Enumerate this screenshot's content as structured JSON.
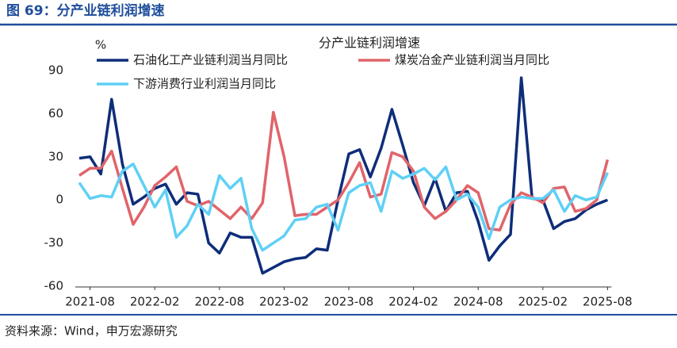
{
  "header": {
    "title": "图 69：分产业链利润增速"
  },
  "chart_data": {
    "type": "line",
    "title": "分产业链利润增速",
    "y_label": "%",
    "categories": [
      null,
      "2021-08",
      null,
      null,
      null,
      null,
      null,
      "2022-02",
      null,
      null,
      null,
      null,
      null,
      "2022-08",
      null,
      null,
      null,
      null,
      null,
      "2023-02",
      null,
      null,
      null,
      null,
      null,
      "2023-08",
      null,
      null,
      null,
      null,
      null,
      "2024-02",
      null,
      null,
      null,
      null,
      null,
      "2024-08",
      null,
      null,
      null,
      null,
      null,
      "2025-02",
      null,
      null,
      null,
      null,
      null,
      "2025-08"
    ],
    "series": [
      {
        "name": "石油化工产业链利润当月同比",
        "color": "#0e2d7a",
        "values": [
          29,
          30,
          18,
          70,
          25,
          -3,
          2,
          8,
          11,
          -3,
          5,
          4,
          -30,
          -37,
          -23,
          -26,
          -26,
          -51,
          -47,
          -43,
          -41,
          -40,
          -34,
          -35,
          0,
          32,
          35,
          16,
          36,
          63,
          38,
          12,
          -4,
          15,
          -8,
          5,
          6,
          -15,
          -42,
          -32,
          -24,
          85,
          1,
          0,
          -20,
          -15,
          -13,
          -7,
          -3,
          0
        ]
      },
      {
        "name": "煤炭冶金产业链利润当月同比",
        "color": "#e0646a",
        "values": [
          17,
          22,
          22,
          34,
          8,
          -17,
          -5,
          10,
          16,
          23,
          -1,
          -4,
          -1,
          -7,
          -13,
          -5,
          -13,
          -2,
          61,
          30,
          -11,
          -10,
          -10,
          -5,
          0,
          12,
          26,
          2,
          4,
          33,
          30,
          20,
          -5,
          -13,
          -8,
          0,
          10,
          5,
          -20,
          -21,
          -3,
          5,
          2,
          -2,
          8,
          9,
          -8,
          -6,
          0,
          28
        ]
      },
      {
        "name": "下游消费行业利润当月同比",
        "color": "#5fd0f5",
        "values": [
          12,
          1,
          3,
          2,
          20,
          25,
          10,
          -5,
          7,
          -26,
          -18,
          -3,
          -10,
          17,
          8,
          15,
          -20,
          -35,
          -30,
          -25,
          -14,
          -13,
          -5,
          -3,
          -21,
          5,
          10,
          12,
          -8,
          20,
          15,
          18,
          22,
          14,
          23,
          0,
          4,
          -5,
          -27,
          -5,
          0,
          2,
          1,
          1,
          7,
          -8,
          3,
          0,
          2,
          19
        ]
      }
    ],
    "ylim": [
      -60,
      90
    ],
    "yticks": [
      90,
      60,
      30,
      0,
      -30,
      -60
    ]
  },
  "footer": {
    "source": "资料来源：Wind，申万宏源研究"
  }
}
